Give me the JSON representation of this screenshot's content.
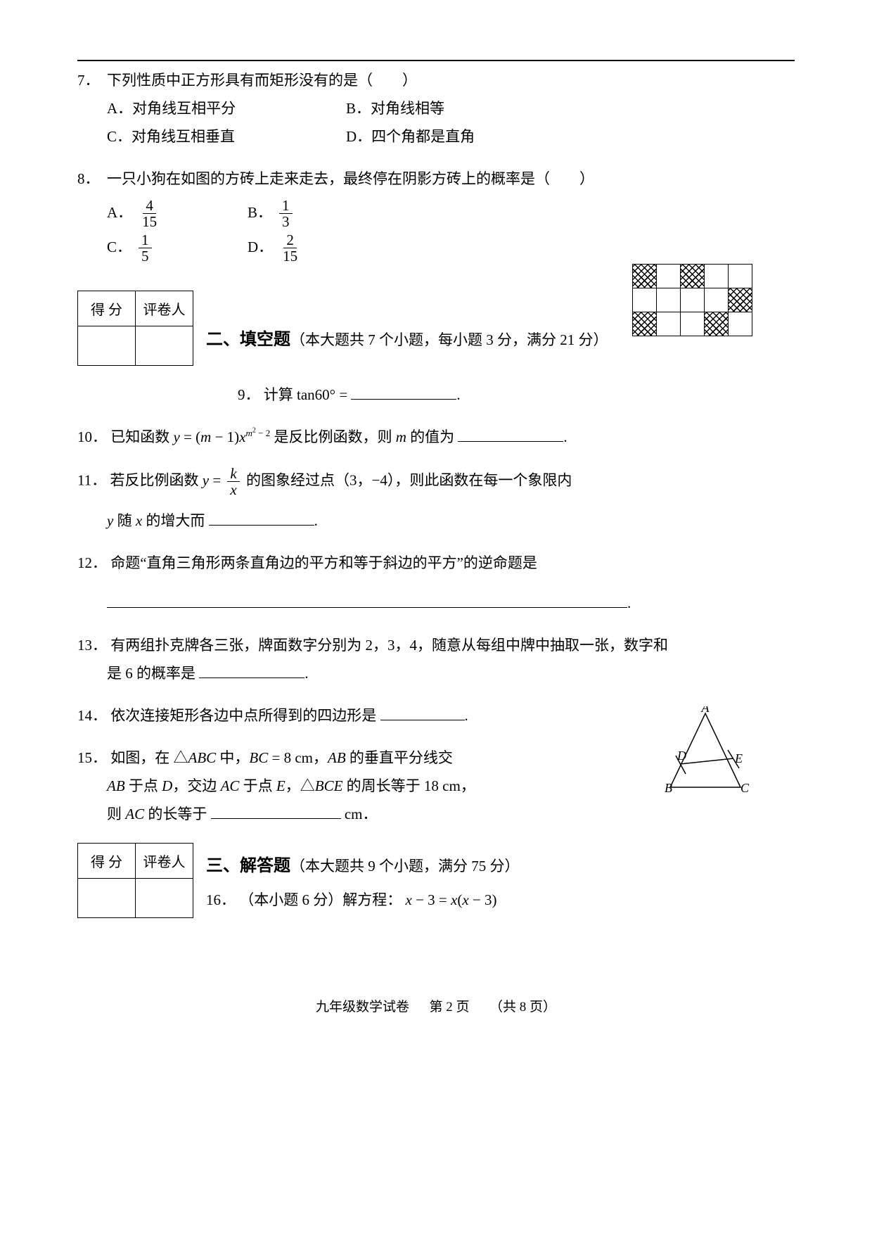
{
  "q7": {
    "num": "7．",
    "text": "下列性质中正方形具有而矩形没有的是（　　）",
    "opts": {
      "A": "A．对角线互相平分",
      "B": "B．对角线相等",
      "C": "C．对角线互相垂直",
      "D": "D．四个角都是直角"
    }
  },
  "q8": {
    "num": "8．",
    "text": "一只小狗在如图的方砖上走来走去，最终停在阴影方砖上的概率是（　　）",
    "labels": {
      "A": "A．",
      "B": "B．",
      "C": "C．",
      "D": "D．"
    },
    "fracs": {
      "A": {
        "n": "4",
        "d": "15"
      },
      "B": {
        "n": "1",
        "d": "3"
      },
      "C": {
        "n": "1",
        "d": "5"
      },
      "D": {
        "n": "2",
        "d": "15"
      }
    },
    "grid": [
      [
        1,
        0,
        1,
        0,
        0
      ],
      [
        0,
        0,
        0,
        0,
        1
      ],
      [
        1,
        0,
        0,
        1,
        0
      ]
    ]
  },
  "scorebox": {
    "c1": "得 分",
    "c2": "评卷人"
  },
  "section2": {
    "title": "二、填空题",
    "desc": "（本大题共 7 个小题，每小题 3 分，满分 21 分）"
  },
  "q9": {
    "num": "9．",
    "pre": "计算 ",
    "expr": "tan60°",
    "eq": " = ",
    "end": "."
  },
  "q10": {
    "num": "10．",
    "pre": "已知函数 ",
    "y": "y",
    "eq": " = (",
    "m1": "m",
    "minus1": " − 1)",
    "x": "x",
    "exp_m": "m",
    "exp_rest": " − 2",
    "post": " 是反比例函数，则 ",
    "m2": "m",
    "post2": " 的值为",
    "end": "."
  },
  "q11": {
    "num": "11．",
    "pre": "若反比例函数 ",
    "y": "y",
    "eq": " = ",
    "frac": {
      "n_it": "k",
      "d_it": "x"
    },
    "post": " 的图象经过点（3，−4），则此函数在每一个象限内",
    "line2_y": "y",
    "line2_mid": "  随 ",
    "line2_x": "x",
    "line2_post": " 的增大而",
    "end": "."
  },
  "q12": {
    "num": "12．",
    "text": "命题“直角三角形两条直角边的平方和等于斜边的平方”的逆命题是",
    "end": "."
  },
  "q13": {
    "num": "13．",
    "text": "有两组扑克牌各三张，牌面数字分别为 2，3，4，随意从每组中牌中抽取一张，数字和",
    "line2": "是 6 的概率是",
    "end": "."
  },
  "q14": {
    "num": "14．",
    "text": "依次连接矩形各边中点所得到的四边形是",
    "end": "."
  },
  "q15": {
    "num": "15．",
    "l1a": "如图，在 △",
    "ABC": "ABC",
    "l1b": " 中，",
    "BC": "BC",
    "l1c": " = 8 cm，",
    "AB": "AB",
    "l1d": " 的垂直平分线交",
    "l2_AB": "AB",
    "l2a": " 于点 ",
    "D": "D",
    "l2b": "，交边 ",
    "AC": "AC",
    "l2c": " 于点 ",
    "E": "E",
    "l2d": "，△",
    "BCE": "BCE",
    "l2e": " 的周长等于 18 cm，",
    "l3a": "则 ",
    "AC2": "AC",
    "l3b": " 的长等于",
    "l3c": "  cm．",
    "labels": {
      "A": "A",
      "B": "B",
      "C": "C",
      "D": "D",
      "E": "E"
    }
  },
  "section3": {
    "title": "三、解答题",
    "desc": "（本大题共 9 个小题，满分 75 分）"
  },
  "q16": {
    "num": "16．",
    "pre": "（本小题 6 分）解方程：",
    "expr_x1": "x",
    "m1": " − 3 = ",
    "expr_x2": "x",
    "lp": "(",
    "expr_x3": "x",
    "m2": " − 3)",
    "rp": ""
  },
  "footer": {
    "a": "九年级数学试卷",
    "b": "第  2  页",
    "c": "（共 8 页）"
  },
  "colors": {
    "text": "#000000",
    "bg": "#ffffff"
  }
}
